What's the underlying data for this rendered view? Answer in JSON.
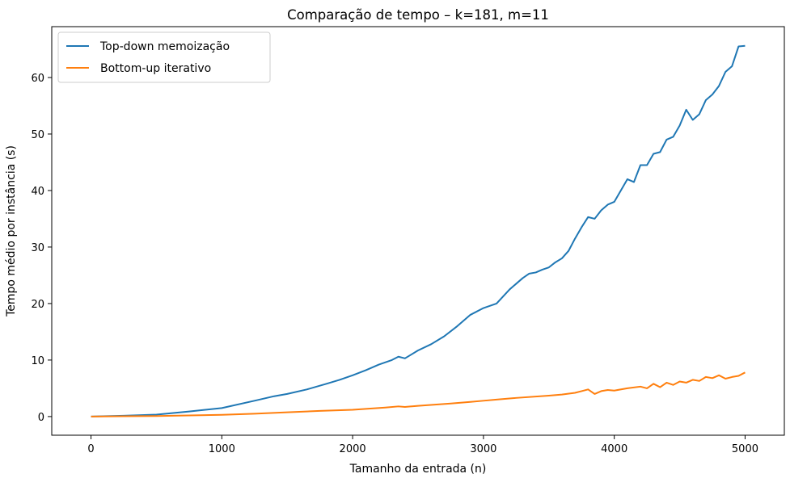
{
  "chart_data": {
    "type": "line",
    "title": "Comparação de tempo – k=181, m=11",
    "xlabel": "Tamanho da entrada (n)",
    "ylabel": "Tempo médio por instância (s)",
    "xlim": [
      -300,
      5300
    ],
    "ylim": [
      -3.3,
      69
    ],
    "xticks": [
      0,
      1000,
      2000,
      3000,
      4000,
      5000
    ],
    "yticks": [
      0,
      10,
      20,
      30,
      40,
      50,
      60
    ],
    "grid": false,
    "legend_position": "top-left",
    "series": [
      {
        "name": "Top-down memoização",
        "color": "#1f77b4",
        "x": [
          0,
          250,
          500,
          750,
          1000,
          1250,
          1400,
          1500,
          1650,
          1800,
          1900,
          2000,
          2100,
          2200,
          2300,
          2350,
          2400,
          2450,
          2500,
          2600,
          2700,
          2800,
          2900,
          3000,
          3100,
          3200,
          3250,
          3300,
          3350,
          3400,
          3450,
          3500,
          3550,
          3600,
          3650,
          3700,
          3750,
          3800,
          3850,
          3900,
          3950,
          4000,
          4050,
          4100,
          4150,
          4200,
          4250,
          4300,
          4350,
          4400,
          4450,
          4500,
          4550,
          4600,
          4650,
          4700,
          4750,
          4800,
          4850,
          4900,
          4950,
          5000
        ],
        "y": [
          0,
          0.15,
          0.35,
          0.9,
          1.5,
          2.8,
          3.6,
          4.0,
          4.8,
          5.8,
          6.5,
          7.3,
          8.2,
          9.2,
          10.0,
          10.6,
          10.3,
          11.0,
          11.7,
          12.8,
          14.2,
          16.0,
          18.0,
          19.2,
          20.0,
          22.5,
          23.5,
          24.5,
          25.3,
          25.5,
          26.0,
          26.4,
          27.3,
          28.0,
          29.3,
          31.5,
          33.5,
          35.3,
          35.0,
          36.5,
          37.5,
          38.0,
          40.0,
          42.0,
          41.5,
          44.5,
          44.5,
          46.5,
          46.8,
          49.0,
          49.5,
          51.5,
          54.3,
          52.5,
          53.5,
          56.0,
          57.0,
          58.5,
          61.0,
          62.0,
          65.5,
          65.6
        ]
      },
      {
        "name": "Bottom-up iterativo",
        "color": "#ff7f0e",
        "x": [
          0,
          250,
          500,
          750,
          1000,
          1250,
          1500,
          1750,
          2000,
          2250,
          2350,
          2400,
          2500,
          2750,
          2900,
          3000,
          3100,
          3250,
          3500,
          3600,
          3700,
          3750,
          3800,
          3850,
          3900,
          3950,
          4000,
          4100,
          4200,
          4250,
          4300,
          4350,
          4400,
          4450,
          4500,
          4550,
          4600,
          4650,
          4700,
          4750,
          4800,
          4850,
          4900,
          4950,
          5000
        ],
        "y": [
          0,
          0.05,
          0.1,
          0.2,
          0.3,
          0.5,
          0.75,
          1.0,
          1.2,
          1.6,
          1.8,
          1.7,
          1.9,
          2.3,
          2.6,
          2.8,
          3.0,
          3.3,
          3.7,
          3.9,
          4.2,
          4.5,
          4.8,
          4.0,
          4.5,
          4.7,
          4.6,
          5.0,
          5.3,
          5.0,
          5.8,
          5.2,
          6.0,
          5.6,
          6.2,
          6.0,
          6.5,
          6.3,
          7.0,
          6.8,
          7.3,
          6.7,
          7.0,
          7.2,
          7.8
        ]
      }
    ]
  }
}
